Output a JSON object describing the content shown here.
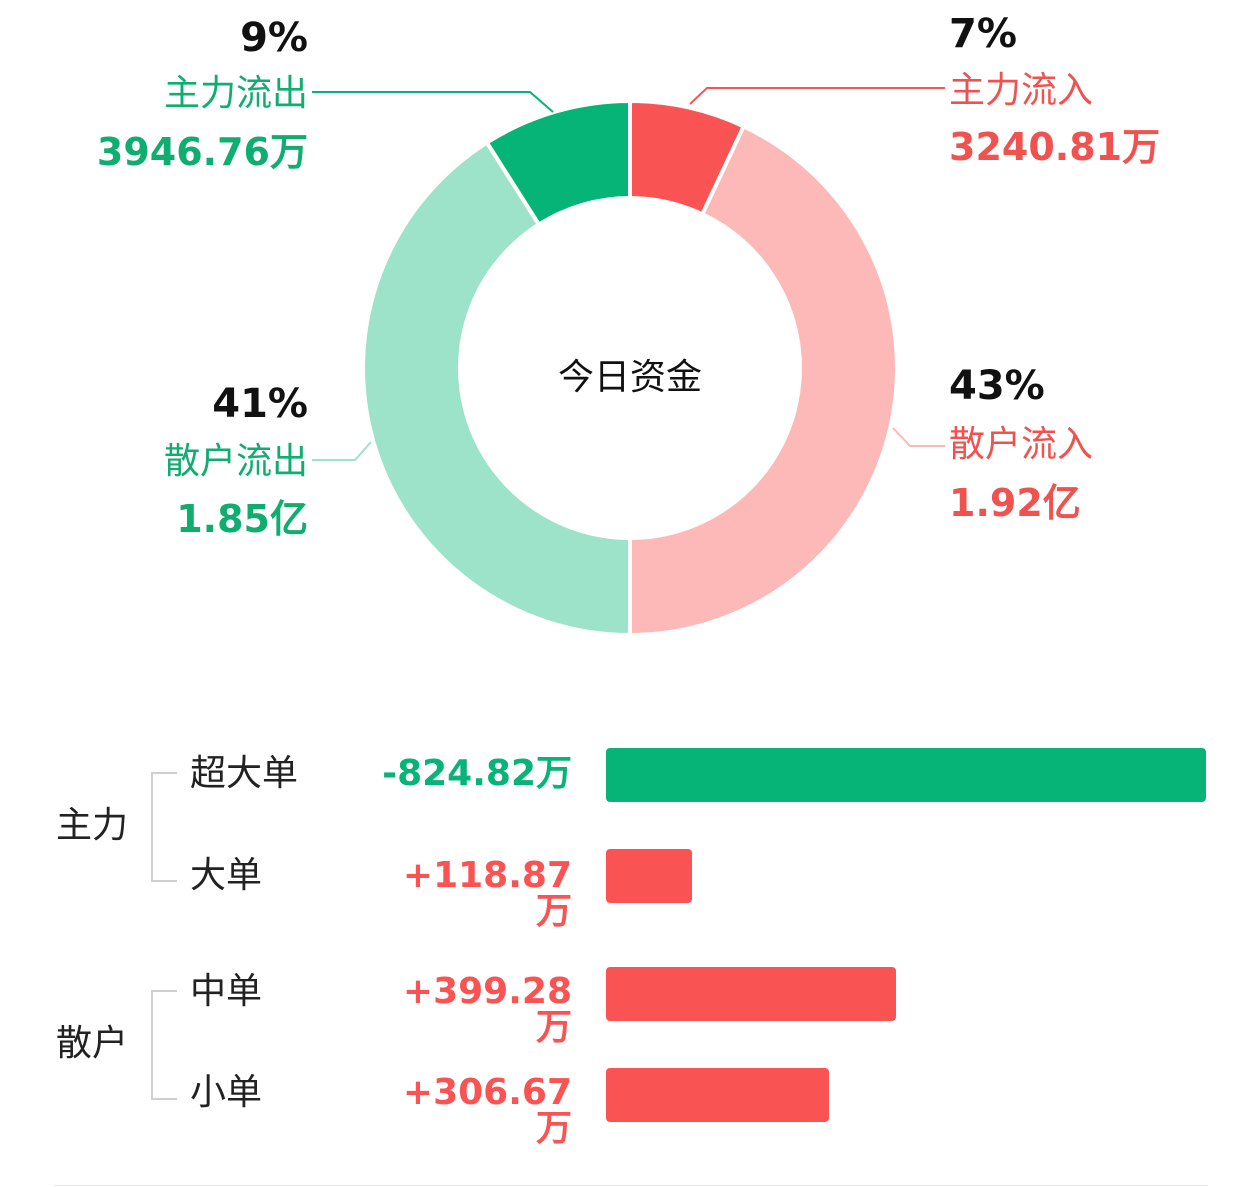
{
  "chart_data": [
    {
      "type": "pie",
      "donut": true,
      "title": "今日资金",
      "series": [
        {
          "name": "主力流入",
          "percent": 7,
          "amount": "3240.81万",
          "pct_label": "7%",
          "color": "#fa5353"
        },
        {
          "name": "散户流入",
          "percent": 43,
          "amount": "1.92亿",
          "pct_label": "43%",
          "color": "#fdb8b8"
        },
        {
          "name": "散户流出",
          "percent": 41,
          "amount": "1.85亿",
          "pct_label": "41%",
          "color": "#9de3c9"
        },
        {
          "name": "主力流出",
          "percent": 9,
          "amount": "3946.76万",
          "pct_label": "9%",
          "color": "#05b476"
        }
      ]
    },
    {
      "type": "bar",
      "orientation": "horizontal",
      "unit": "万",
      "groups": [
        {
          "name": "主力",
          "categories": [
            "超大单",
            "大单"
          ]
        },
        {
          "name": "散户",
          "categories": [
            "中单",
            "小单"
          ]
        }
      ],
      "categories": [
        "超大单",
        "大单",
        "中单",
        "小单"
      ],
      "values": [
        -824.82,
        118.87,
        399.28,
        306.67
      ],
      "value_labels": [
        "-824.82万",
        "+118.87万",
        "+399.28万",
        "+306.67万"
      ],
      "colors": {
        "positive": "#fa5353",
        "negative": "#05b476"
      }
    }
  ]
}
